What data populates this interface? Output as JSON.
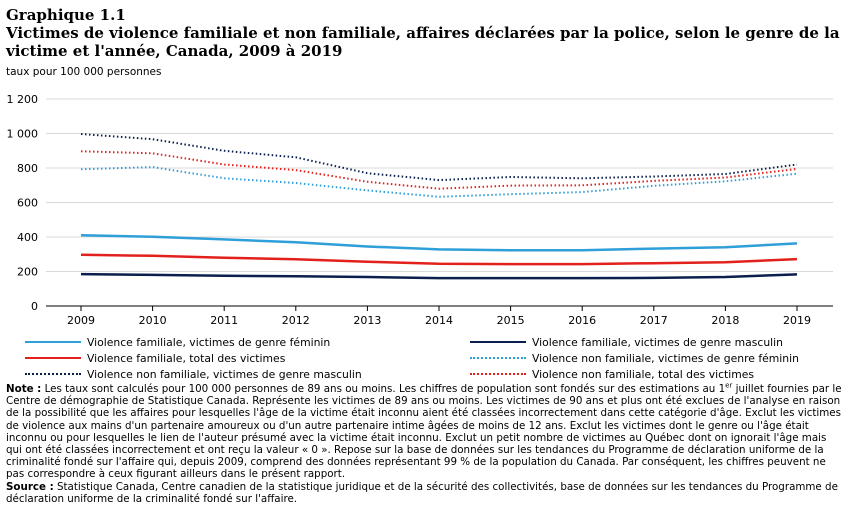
{
  "title": {
    "line1": "Graphique 1.1",
    "line2": "Victimes de violence familiale et non familiale, affaires déclarées par la police, selon le genre de la victime et l'année, Canada, 2009 à 2019"
  },
  "units_label": "taux pour 100 000 personnes",
  "chart_data": {
    "type": "line",
    "title": "Victimes de violence familiale et non familiale, affaires déclarées par la police, selon le genre de la victime et l'année, Canada, 2009 à 2019",
    "ylabel": "taux pour 100 000 personnes",
    "xlabel": "",
    "ylim": [
      0,
      1200
    ],
    "yticks": [
      0,
      200,
      400,
      600,
      800,
      1000,
      1200
    ],
    "ytick_labels": [
      "0",
      "200",
      "400",
      "600",
      "800",
      "1 000",
      "1 200"
    ],
    "grid": true,
    "categories": [
      "2009",
      "2010",
      "2011",
      "2012",
      "2013",
      "2014",
      "2015",
      "2016",
      "2017",
      "2018",
      "2019"
    ],
    "series": [
      {
        "name": "Violence familiale, victimes de genre féminin",
        "color": "#2e9fd9",
        "style": "solid",
        "values": [
          410,
          402,
          386,
          370,
          345,
          328,
          323,
          323,
          333,
          340,
          363
        ]
      },
      {
        "name": "Violence familiale, victimes de genre masculin",
        "color": "#0a1f4d",
        "style": "solid",
        "values": [
          185,
          180,
          175,
          172,
          168,
          162,
          162,
          162,
          163,
          168,
          183
        ]
      },
      {
        "name": "Violence familiale, total des victimes",
        "color": "#e3211c",
        "style": "solid",
        "values": [
          297,
          291,
          280,
          271,
          257,
          245,
          243,
          243,
          248,
          254,
          272
        ]
      },
      {
        "name": "Violence non familiale, victimes de genre féminin",
        "color": "#2e9fd9",
        "style": "dotted",
        "values": [
          793,
          805,
          740,
          713,
          670,
          633,
          648,
          660,
          697,
          723,
          767
        ]
      },
      {
        "name": "Violence non familiale, victimes de genre masculin",
        "color": "#0a1f4d",
        "style": "dotted",
        "values": [
          997,
          967,
          900,
          862,
          770,
          730,
          748,
          740,
          751,
          765,
          820
        ]
      },
      {
        "name": "Violence non familiale, total des victimes",
        "color": "#e3211c",
        "style": "dotted",
        "values": [
          897,
          885,
          820,
          788,
          720,
          680,
          698,
          700,
          725,
          745,
          795
        ]
      }
    ]
  },
  "notes": {
    "note_label": "Note :",
    "note_text_a": "Les taux sont calculés pour 100 000 personnes de 89 ans ou moins. Les chiffres de population sont fondés sur des estimations au 1",
    "note_sup": "er",
    "note_text_b": " juillet fournies par le Centre de démographie de Statistique Canada. Représente les victimes de 89 ans ou moins. Les victimes de 90 ans et plus ont été exclues de l'analyse en raison de la possibilité que les affaires pour lesquelles l'âge de la victime était inconnu aient été classées incorrectement dans cette catégorie d'âge. Exclut les victimes de violence aux mains d'un partenaire amoureux ou d'un autre partenaire intime âgées de moins de 12 ans. Exclut les victimes dont le genre ou l'âge était inconnu ou pour lesquelles le lien de l'auteur présumé avec la victime était inconnu. Exclut un petit nombre de victimes au Québec dont on ignorait l'âge mais qui ont été classées incorrectement et ont reçu la valeur « 0 ». Repose sur la base de données sur les tendances du Programme de déclaration uniforme de la criminalité fondé sur l'affaire qui, depuis 2009, comprend des données représentant 99 % de la population du Canada. Par conséquent, les chiffres peuvent ne pas correspondre à ceux figurant ailleurs dans le présent rapport.",
    "source_label": "Source :",
    "source_text": "Statistique Canada, Centre canadien de la statistique juridique et de la sécurité des collectivités, base de données sur les tendances du Programme de déclaration uniforme de la criminalité fondé sur l'affaire."
  }
}
